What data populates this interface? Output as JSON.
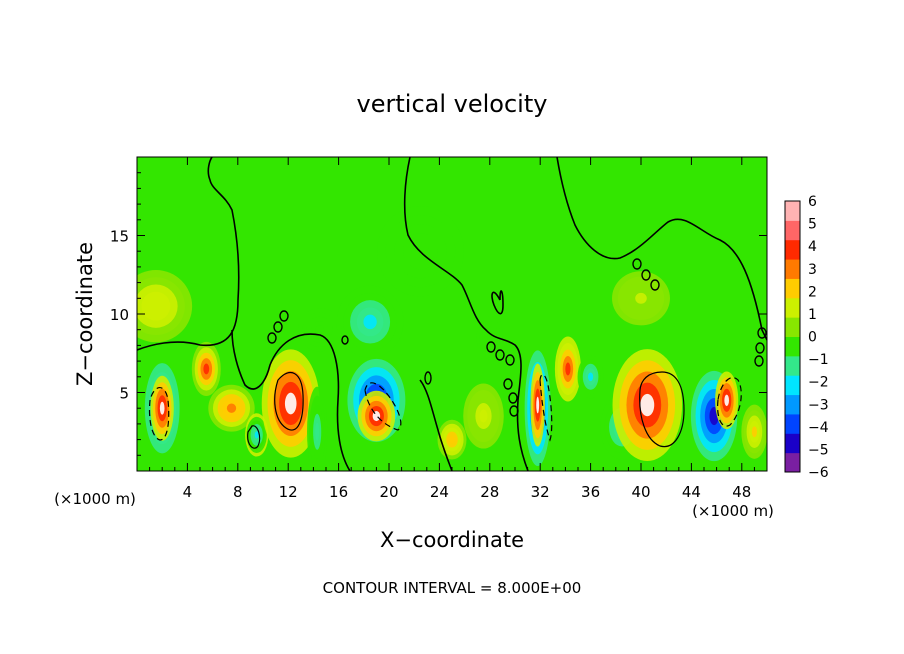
{
  "chart_data": {
    "type": "heatmap",
    "title": "vertical velocity",
    "xlabel": "X−coordinate",
    "ylabel": "Z−coordinate",
    "x_unit_left": "(×1000 m)",
    "x_unit_right": "(×1000 m)",
    "footer": "CONTOUR INTERVAL = 8.000E+00",
    "xlim": [
      0,
      50
    ],
    "ylim": [
      0,
      20
    ],
    "x_ticks": [
      4,
      8,
      12,
      16,
      20,
      24,
      28,
      32,
      36,
      40,
      44,
      48
    ],
    "x_tick_labels": [
      "4",
      "8",
      "12",
      "16",
      "20",
      "24",
      "28",
      "32",
      "36",
      "40",
      "44",
      "48"
    ],
    "y_ticks": [
      5,
      10,
      15
    ],
    "y_tick_labels": [
      "5",
      "10",
      "15"
    ],
    "colorbar": {
      "min": -6,
      "max": 6,
      "ticks": [
        6,
        5,
        4,
        3,
        2,
        1,
        0,
        -1,
        -2,
        -3,
        -4,
        -5,
        -6
      ],
      "tick_labels": [
        "6",
        "5",
        "4",
        "3",
        "2",
        "1",
        "0",
        "−1",
        "−2",
        "−3",
        "−4",
        "−5",
        "−6"
      ],
      "colors": [
        "#7a1fa2",
        "#1a00c8",
        "#0044ff",
        "#0099ff",
        "#00e5ff",
        "#33e88a",
        "#33e600",
        "#88e600",
        "#ccf000",
        "#ffcc00",
        "#ff7a00",
        "#ff2a00",
        "#ff6666",
        "#ffb3b3"
      ]
    },
    "cells": [
      {
        "x": 2.0,
        "z": 4.0,
        "sx": 1.2,
        "sz": 2.5,
        "v": -5.0
      },
      {
        "x": 2.0,
        "z": 4.0,
        "sx": 0.8,
        "sz": 1.8,
        "v": 6.0
      },
      {
        "x": 5.5,
        "z": 6.5,
        "sx": 1.0,
        "sz": 1.5,
        "v": 4.5
      },
      {
        "x": 7.5,
        "z": 4.0,
        "sx": 1.6,
        "sz": 1.3,
        "v": 4.0
      },
      {
        "x": 9.5,
        "z": 2.3,
        "sx": 0.8,
        "sz": 1.2,
        "v": 5.0
      },
      {
        "x": 9.5,
        "z": 2.3,
        "sx": 0.7,
        "sz": 1.0,
        "v": -2.5
      },
      {
        "x": 12.2,
        "z": 4.3,
        "sx": 2.0,
        "sz": 3.0,
        "v": 6.0
      },
      {
        "x": 14.3,
        "z": 2.5,
        "sx": 0.7,
        "sz": 2.5,
        "v": -1.5
      },
      {
        "x": 19.0,
        "z": 4.5,
        "sx": 2.0,
        "sz": 2.3,
        "v": -5.5
      },
      {
        "x": 19.0,
        "z": 3.5,
        "sx": 1.3,
        "sz": 1.4,
        "v": 6.0
      },
      {
        "x": 18.5,
        "z": 9.5,
        "sx": 2.3,
        "sz": 2.0,
        "v": -2.5
      },
      {
        "x": 14.5,
        "z": 9.0,
        "sx": 1.5,
        "sz": 1.2,
        "v": -1.0
      },
      {
        "x": 25.0,
        "z": 2.0,
        "sx": 1.0,
        "sz": 1.1,
        "v": 3.0
      },
      {
        "x": 27.5,
        "z": 3.5,
        "sx": 1.4,
        "sz": 1.8,
        "v": 1.5
      },
      {
        "x": 31.8,
        "z": 4.0,
        "sx": 0.9,
        "sz": 3.2,
        "v": -5.5
      },
      {
        "x": 31.8,
        "z": 4.2,
        "sx": 0.5,
        "sz": 2.3,
        "v": 6.0
      },
      {
        "x": 34.2,
        "z": 6.5,
        "sx": 0.9,
        "sz": 1.8,
        "v": 5.0
      },
      {
        "x": 36.0,
        "z": 6.0,
        "sx": 0.9,
        "sz": 1.2,
        "v": -2.5
      },
      {
        "x": 38.5,
        "z": 2.8,
        "sx": 1.5,
        "sz": 1.8,
        "v": -2.0
      },
      {
        "x": 40.5,
        "z": 4.2,
        "sx": 2.4,
        "sz": 3.1,
        "v": 6.0
      },
      {
        "x": 45.8,
        "z": 3.5,
        "sx": 1.6,
        "sz": 2.5,
        "v": -5.5
      },
      {
        "x": 46.8,
        "z": 4.5,
        "sx": 0.8,
        "sz": 1.6,
        "v": 6.0
      },
      {
        "x": 49.0,
        "z": 2.5,
        "sx": 0.9,
        "sz": 1.5,
        "v": 2.5
      },
      {
        "x": 1.5,
        "z": 10.5,
        "sx": 2.5,
        "sz": 2.0,
        "v": 2.0
      },
      {
        "x": 40.0,
        "z": 11.0,
        "sx": 2.0,
        "sz": 1.5,
        "v": 1.2
      },
      {
        "x": 28.0,
        "z": 8.5,
        "sx": 0.9,
        "sz": 1.5,
        "v": -1.0
      },
      {
        "x": 22.5,
        "z": 14.0,
        "sx": 3.0,
        "sz": 2.5,
        "v": -0.5
      }
    ]
  }
}
